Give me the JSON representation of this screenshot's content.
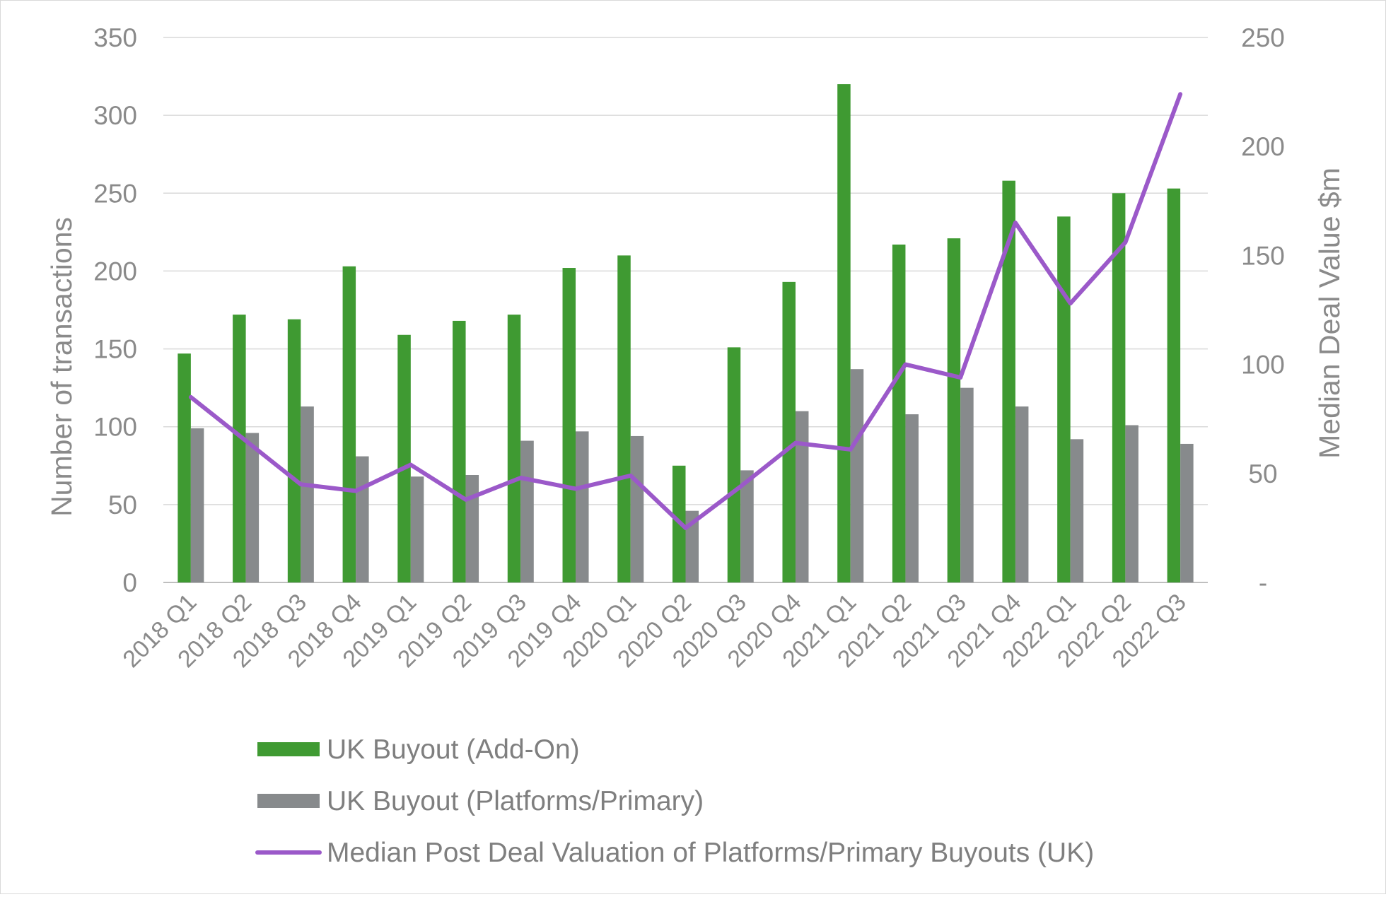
{
  "chart_data": {
    "type": "bar",
    "title": "",
    "categories": [
      "2018 Q1",
      "2018 Q2",
      "2018 Q3",
      "2018 Q4",
      "2019 Q1",
      "2019 Q2",
      "2019 Q3",
      "2019 Q4",
      "2020 Q1",
      "2020 Q2",
      "2020 Q3",
      "2020 Q4",
      "2021 Q1",
      "2021 Q2",
      "2021 Q3",
      "2021 Q4",
      "2022 Q1",
      "2022 Q2",
      "2022 Q3"
    ],
    "series": [
      {
        "name": "UK Buyout (Add-On)",
        "type": "bar",
        "axis": "left",
        "color": "#3f9a32",
        "values": [
          147,
          172,
          169,
          203,
          159,
          168,
          172,
          202,
          210,
          75,
          151,
          193,
          320,
          217,
          221,
          258,
          235,
          250,
          253
        ]
      },
      {
        "name": "UK Buyout (Platforms/Primary)",
        "type": "bar",
        "axis": "left",
        "color": "#878a8c",
        "values": [
          99,
          96,
          113,
          81,
          68,
          69,
          91,
          97,
          94,
          46,
          72,
          110,
          137,
          108,
          125,
          113,
          92,
          101,
          89
        ]
      },
      {
        "name": "Median Post Deal Valuation of Platforms/Primary Buyouts (UK)",
        "type": "line",
        "axis": "right",
        "color": "#9b59c9",
        "values": [
          85,
          65,
          45,
          42,
          54,
          38,
          48,
          43,
          49,
          25,
          44,
          64,
          61,
          100,
          94,
          165,
          128,
          156,
          224
        ]
      }
    ],
    "ylabel": "Number of transactions",
    "y2label": "Median Deal Value $m",
    "ylim": [
      0,
      350
    ],
    "y2lim": [
      0,
      250
    ],
    "yticks": [
      "0",
      "50",
      "100",
      "150",
      "200",
      "250",
      "300",
      "350"
    ],
    "y2ticks": [
      "-",
      "50",
      "100",
      "150",
      "200",
      "250"
    ],
    "grid": true,
    "legend_position": "bottom"
  }
}
